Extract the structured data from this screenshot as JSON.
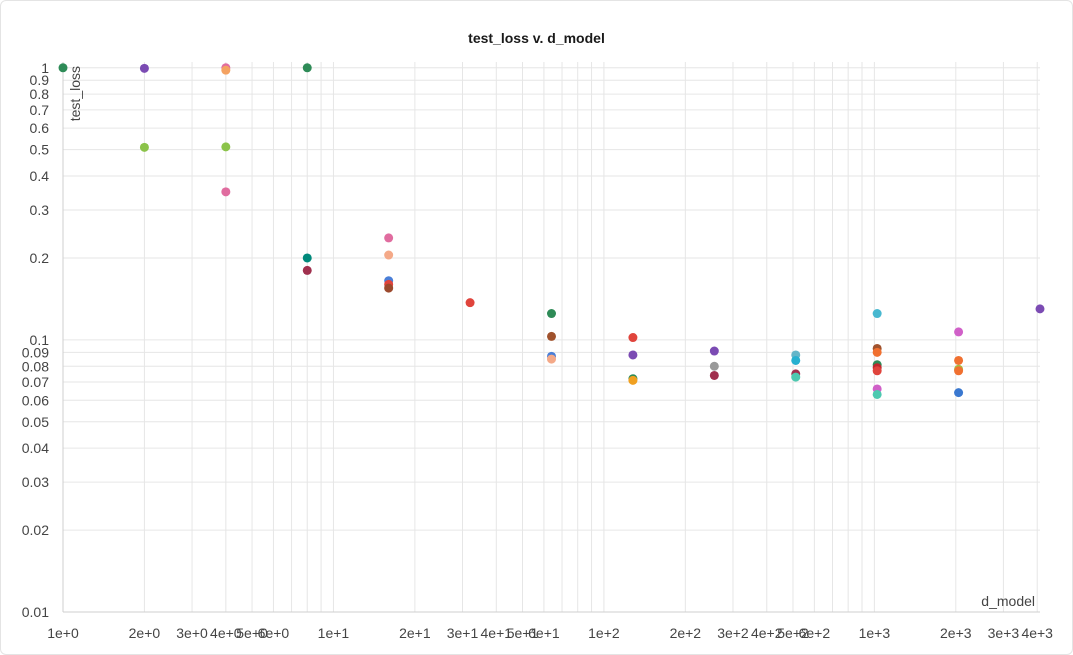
{
  "chart_data": {
    "type": "scatter",
    "title": "test_loss v. d_model",
    "xlabel": "d_model",
    "ylabel": "test_loss",
    "x_scale": "log2",
    "y_scale": "log",
    "xlim": [
      1,
      4096
    ],
    "ylim": [
      0.01,
      1.05
    ],
    "grid": true,
    "x_ticks": [
      {
        "v": 1,
        "label": "1e+0"
      },
      {
        "v": 2,
        "label": "2e+0"
      },
      {
        "v": 3,
        "label": "3e+0"
      },
      {
        "v": 4,
        "label": "4e+0"
      },
      {
        "v": 5,
        "label": "5e+0"
      },
      {
        "v": 6,
        "label": "6e+0"
      },
      {
        "v": 10,
        "label": "1e+1"
      },
      {
        "v": 20,
        "label": "2e+1"
      },
      {
        "v": 30,
        "label": "3e+1"
      },
      {
        "v": 40,
        "label": "4e+1"
      },
      {
        "v": 50,
        "label": "5e+1"
      },
      {
        "v": 60,
        "label": "6e+1"
      },
      {
        "v": 100,
        "label": "1e+2"
      },
      {
        "v": 200,
        "label": "2e+2"
      },
      {
        "v": 300,
        "label": "3e+2"
      },
      {
        "v": 400,
        "label": "4e+2"
      },
      {
        "v": 500,
        "label": "5e+2"
      },
      {
        "v": 600,
        "label": "6e+2"
      },
      {
        "v": 1000,
        "label": "1e+3"
      },
      {
        "v": 2000,
        "label": "2e+3"
      },
      {
        "v": 3000,
        "label": "3e+3"
      },
      {
        "v": 4000,
        "label": "4e+3"
      }
    ],
    "y_ticks": [
      {
        "v": 1,
        "label": "1"
      },
      {
        "v": 0.9,
        "label": "0.9"
      },
      {
        "v": 0.8,
        "label": "0.8"
      },
      {
        "v": 0.7,
        "label": "0.7"
      },
      {
        "v": 0.6,
        "label": "0.6"
      },
      {
        "v": 0.5,
        "label": "0.5"
      },
      {
        "v": 0.4,
        "label": "0.4"
      },
      {
        "v": 0.3,
        "label": "0.3"
      },
      {
        "v": 0.2,
        "label": "0.2"
      },
      {
        "v": 0.1,
        "label": "0.1"
      },
      {
        "v": 0.09,
        "label": "0.09"
      },
      {
        "v": 0.08,
        "label": "0.08"
      },
      {
        "v": 0.07,
        "label": "0.07"
      },
      {
        "v": 0.06,
        "label": "0.06"
      },
      {
        "v": 0.05,
        "label": "0.05"
      },
      {
        "v": 0.04,
        "label": "0.04"
      },
      {
        "v": 0.03,
        "label": "0.03"
      },
      {
        "v": 0.02,
        "label": "0.02"
      },
      {
        "v": 0.01,
        "label": "0.01"
      }
    ],
    "points": [
      {
        "x": 1,
        "y": 1.0,
        "color": "#2e8b57"
      },
      {
        "x": 2,
        "y": 0.995,
        "color": "#7b4bb3"
      },
      {
        "x": 2,
        "y": 0.51,
        "color": "#8bc34a"
      },
      {
        "x": 4,
        "y": 1.0,
        "color": "#e06c9f"
      },
      {
        "x": 4,
        "y": 0.98,
        "color": "#f4a261"
      },
      {
        "x": 4,
        "y": 0.512,
        "color": "#8bc34a"
      },
      {
        "x": 4,
        "y": 0.35,
        "color": "#e06c9f"
      },
      {
        "x": 8,
        "y": 1.0,
        "color": "#2e8b57"
      },
      {
        "x": 8,
        "y": 0.2,
        "color": "#00897b"
      },
      {
        "x": 8,
        "y": 0.18,
        "color": "#a0304e"
      },
      {
        "x": 16,
        "y": 0.237,
        "color": "#e06c9f"
      },
      {
        "x": 16,
        "y": 0.205,
        "color": "#f4a988"
      },
      {
        "x": 16,
        "y": 0.165,
        "color": "#4a7fd8"
      },
      {
        "x": 16,
        "y": 0.16,
        "color": "#e0443c"
      },
      {
        "x": 16,
        "y": 0.155,
        "color": "#9c4a2e"
      },
      {
        "x": 32,
        "y": 0.137,
        "color": "#e0443c"
      },
      {
        "x": 64,
        "y": 0.125,
        "color": "#2e8b57"
      },
      {
        "x": 64,
        "y": 0.103,
        "color": "#a0522d"
      },
      {
        "x": 64,
        "y": 0.087,
        "color": "#4a7fd8"
      },
      {
        "x": 64,
        "y": 0.085,
        "color": "#f4a988"
      },
      {
        "x": 128,
        "y": 0.102,
        "color": "#e0443c"
      },
      {
        "x": 128,
        "y": 0.088,
        "color": "#7b4bb3"
      },
      {
        "x": 128,
        "y": 0.072,
        "color": "#2e8b57"
      },
      {
        "x": 128,
        "y": 0.071,
        "color": "#f0a020"
      },
      {
        "x": 256,
        "y": 0.091,
        "color": "#7b4bb3"
      },
      {
        "x": 256,
        "y": 0.08,
        "color": "#999999"
      },
      {
        "x": 256,
        "y": 0.074,
        "color": "#a0304e"
      },
      {
        "x": 512,
        "y": 0.088,
        "color": "#64b5c8"
      },
      {
        "x": 512,
        "y": 0.084,
        "color": "#26b0d0"
      },
      {
        "x": 512,
        "y": 0.075,
        "color": "#a0304e"
      },
      {
        "x": 512,
        "y": 0.073,
        "color": "#4dc9b0"
      },
      {
        "x": 1024,
        "y": 0.125,
        "color": "#48b8d0"
      },
      {
        "x": 1024,
        "y": 0.093,
        "color": "#a0522d"
      },
      {
        "x": 1024,
        "y": 0.09,
        "color": "#f07030"
      },
      {
        "x": 1024,
        "y": 0.081,
        "color": "#2e8b57"
      },
      {
        "x": 1024,
        "y": 0.079,
        "color": "#c0282d"
      },
      {
        "x": 1024,
        "y": 0.077,
        "color": "#e0443c"
      },
      {
        "x": 1024,
        "y": 0.066,
        "color": "#d060c8"
      },
      {
        "x": 1024,
        "y": 0.063,
        "color": "#4dc9b0"
      },
      {
        "x": 2048,
        "y": 0.107,
        "color": "#d060c8"
      },
      {
        "x": 2048,
        "y": 0.084,
        "color": "#f07030"
      },
      {
        "x": 2048,
        "y": 0.078,
        "color": "#a0c040"
      },
      {
        "x": 2048,
        "y": 0.077,
        "color": "#f07030"
      },
      {
        "x": 2048,
        "y": 0.064,
        "color": "#3a78d0"
      },
      {
        "x": 4096,
        "y": 0.13,
        "color": "#7b4bb3"
      }
    ]
  }
}
